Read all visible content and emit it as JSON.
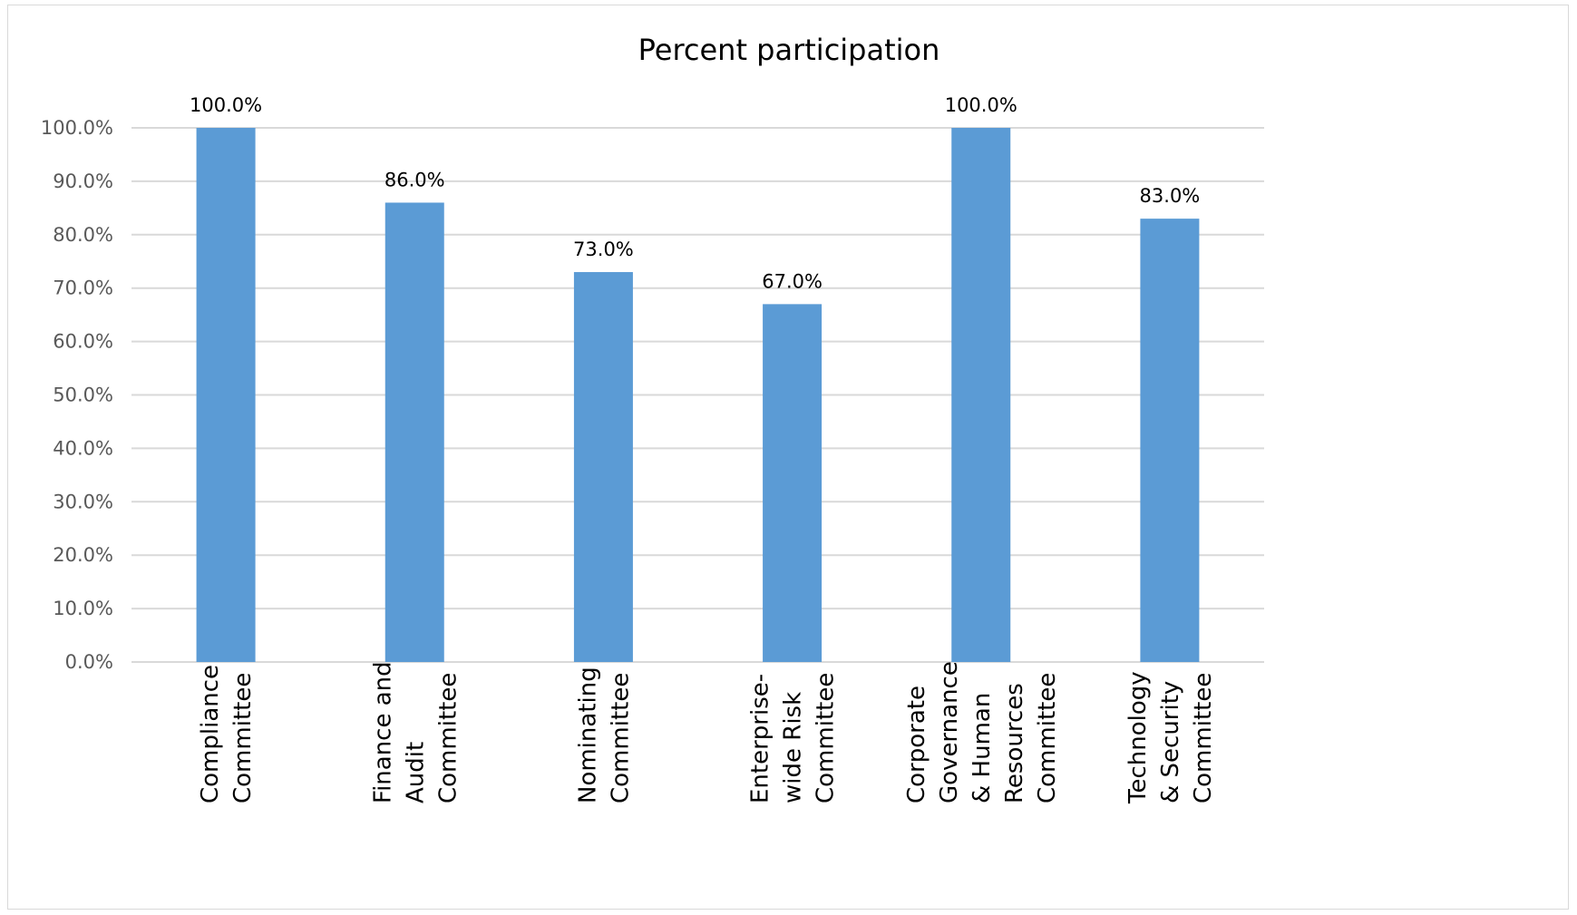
{
  "chart_data": {
    "type": "bar",
    "title": "Percent participation",
    "xlabel": "",
    "ylabel": "",
    "categories": [
      [
        "Compliance",
        "Committee"
      ],
      [
        "Finance and",
        "Audit",
        "Committee"
      ],
      [
        "Nominating",
        "Committee"
      ],
      [
        "Enterprise-",
        "wide Risk",
        "Committee"
      ],
      [
        "Corporate",
        "Governance",
        "& Human",
        "Resources",
        "Committee"
      ],
      [
        "Technology",
        "& Security",
        "Committee"
      ]
    ],
    "series": [
      {
        "values": [
          100.0,
          86.0,
          73.0,
          67.0,
          100.0,
          83.0
        ],
        "color": "#5b9bd5"
      }
    ],
    "data_labels": [
      "100.0%",
      "86.0%",
      "73.0%",
      "67.0%",
      "100.0%",
      "83.0%"
    ],
    "y_ticks": [
      "0.0%",
      "10.0%",
      "20.0%",
      "30.0%",
      "40.0%",
      "50.0%",
      "60.0%",
      "70.0%",
      "80.0%",
      "90.0%",
      "100.0%"
    ],
    "ylim": [
      0,
      100
    ],
    "grid": true,
    "legend": "none",
    "colors": {
      "bar": "#5b9bd5",
      "gridline": "#d9d9d9",
      "tick_text": "#595959",
      "text": "#000000"
    }
  }
}
